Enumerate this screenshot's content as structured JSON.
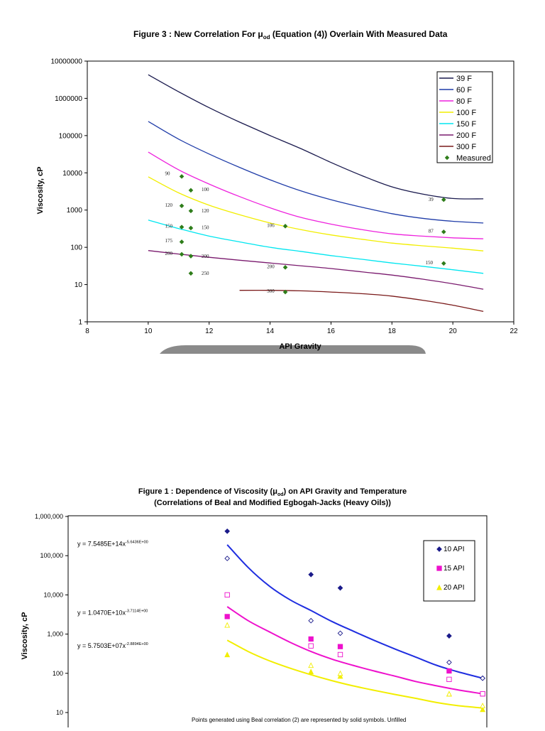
{
  "chart_data": [
    {
      "type": "line",
      "title": "Figure 3 : New Correlation For μ",
      "title_sub": "od",
      "title_rest": " (Equation (4)) Overlain With Measured Data",
      "xlabel": "API Gravity",
      "ylabel": "Viscosity, cP",
      "xlim": [
        8,
        22
      ],
      "ylim_log": [
        1,
        10000000
      ],
      "x_ticks": [
        8,
        10,
        12,
        14,
        16,
        18,
        20,
        22
      ],
      "y_ticks": [
        "1",
        "10",
        "100",
        "1000",
        "10000",
        "100000",
        "1000000",
        "10000000"
      ],
      "series": [
        {
          "name": "39 F",
          "color": "#1a1a4e",
          "x": [
            10,
            11,
            12,
            13,
            14,
            15,
            16,
            17,
            18,
            19,
            20,
            21
          ],
          "values": [
            4300000,
            1500000,
            560000,
            230000,
            100000,
            45000,
            19000,
            8500,
            4200,
            2700,
            2050,
            2000
          ]
        },
        {
          "name": "60 F",
          "color": "#1f3ca8",
          "x": [
            10,
            11,
            12,
            13,
            14,
            15,
            16,
            17,
            18,
            19,
            20,
            21
          ],
          "values": [
            240000,
            80000,
            32000,
            14000,
            6500,
            3300,
            1900,
            1200,
            800,
            600,
            500,
            450
          ]
        },
        {
          "name": "80 F",
          "color": "#ee22dd",
          "x": [
            10,
            11,
            12,
            13,
            14,
            15,
            16,
            17,
            18,
            19,
            20,
            21
          ],
          "values": [
            36000,
            12000,
            5000,
            2300,
            1150,
            640,
            420,
            300,
            230,
            200,
            180,
            170
          ]
        },
        {
          "name": "100 F",
          "color": "#f2ee00",
          "x": [
            10,
            11,
            12,
            13,
            14,
            15,
            16,
            17,
            18,
            19,
            20,
            21
          ],
          "values": [
            7800,
            2900,
            1350,
            750,
            450,
            300,
            215,
            165,
            130,
            110,
            95,
            80
          ]
        },
        {
          "name": "150 F",
          "color": "#00e6f0",
          "x": [
            10,
            11,
            12,
            13,
            14,
            15,
            16,
            17,
            18,
            19,
            20,
            21
          ],
          "values": [
            540,
            320,
            200,
            140,
            100,
            78,
            60,
            48,
            38,
            31,
            25,
            20
          ]
        },
        {
          "name": "200 F",
          "color": "#7a1a6e",
          "x": [
            10,
            11,
            12,
            13,
            14,
            15,
            16,
            17,
            18,
            19,
            20,
            21
          ],
          "values": [
            82,
            66,
            54,
            45,
            38,
            32,
            27,
            22,
            18,
            14,
            10.5,
            7.5
          ]
        },
        {
          "name": "300 F",
          "color": "#7a1a1a",
          "x": [
            13,
            14,
            15,
            16,
            17,
            18,
            19,
            20,
            21
          ],
          "values": [
            7,
            7,
            6.8,
            6.3,
            5.7,
            4.9,
            3.8,
            2.8,
            1.9
          ]
        }
      ],
      "measured": {
        "name": "Measured",
        "color": "#2e7d1a",
        "points": [
          {
            "x": 11.1,
            "y": 8000
          },
          {
            "x": 11.4,
            "y": 3400
          },
          {
            "x": 11.1,
            "y": 1300
          },
          {
            "x": 11.4,
            "y": 950
          },
          {
            "x": 11.1,
            "y": 350
          },
          {
            "x": 11.4,
            "y": 330
          },
          {
            "x": 11.1,
            "y": 140
          },
          {
            "x": 11.1,
            "y": 65
          },
          {
            "x": 11.4,
            "y": 58
          },
          {
            "x": 11.4,
            "y": 20
          },
          {
            "x": 14.5,
            "y": 370
          },
          {
            "x": 14.5,
            "y": 29
          },
          {
            "x": 14.5,
            "y": 6.3
          },
          {
            "x": 19.7,
            "y": 1900
          },
          {
            "x": 19.7,
            "y": 260
          },
          {
            "x": 19.7,
            "y": 37
          }
        ]
      },
      "annotations": [
        {
          "text": "90",
          "x": 10.55,
          "y": 9500
        },
        {
          "text": "100",
          "x": 11.75,
          "y": 3500
        },
        {
          "text": "120",
          "x": 10.55,
          "y": 1350
        },
        {
          "text": "120",
          "x": 11.75,
          "y": 950
        },
        {
          "text": "150",
          "x": 10.55,
          "y": 370
        },
        {
          "text": "150",
          "x": 11.75,
          "y": 340
        },
        {
          "text": "175",
          "x": 10.55,
          "y": 150
        },
        {
          "text": "200",
          "x": 10.55,
          "y": 68
        },
        {
          "text": "200",
          "x": 11.75,
          "y": 57
        },
        {
          "text": "250",
          "x": 11.75,
          "y": 20
        },
        {
          "text": "106",
          "x": 13.9,
          "y": 380
        },
        {
          "text": "200",
          "x": 13.9,
          "y": 30
        },
        {
          "text": "300",
          "x": 13.9,
          "y": 6.6
        },
        {
          "text": "39",
          "x": 19.2,
          "y": 1900
        },
        {
          "text": "87",
          "x": 19.2,
          "y": 270
        },
        {
          "text": "150",
          "x": 19.1,
          "y": 38
        }
      ],
      "legend_position": "top-right"
    },
    {
      "type": "scatter",
      "title_line1_a": "Figure 1 : Dependence of  Viscosity (μ",
      "title_line1_sub": "od",
      "title_line1_b": ") on API Gravity and Temperature",
      "title_line2": "(Correlations of Beal and Modified Egbogah-Jacks (Heavy Oils))",
      "ylabel": "Viscosity, cP",
      "y_ticks": [
        "10",
        "100",
        "1,000",
        "10,000",
        "100,000",
        "1,000,000"
      ],
      "xlim": [
        0,
        100
      ],
      "ylim_log": [
        10,
        1000000
      ],
      "equations": [
        {
          "base": "y = 7.5485E+14x",
          "exp": "-5.6436E+00",
          "y": 200000
        },
        {
          "base": "y = 1.0470E+10x",
          "exp": "-3.7114E+00",
          "y": 3500
        },
        {
          "base": "y = 5.7503E+07x",
          "exp": "-2.8894E+00",
          "y": 500
        }
      ],
      "series": [
        {
          "name": "10 API",
          "color": "#1a1a8a",
          "line_color": "#1f2ee0",
          "marker": "diamond",
          "x": [
            38,
            58,
            65,
            91,
            99
          ],
          "solid": [
            420000,
            33000,
            15000,
            900,
            75
          ],
          "open": [
            85000,
            2200,
            1050,
            190,
            75
          ],
          "fit": [
            190000,
            50000,
            17000,
            7500,
            4000,
            2100,
            1200,
            700,
            420,
            260,
            160,
            110,
            75
          ]
        },
        {
          "name": "15 API",
          "color": "#ee11cc",
          "line_color": "#ee11cc",
          "marker": "square",
          "x": [
            38,
            58,
            65,
            91,
            99
          ],
          "solid": [
            2800,
            750,
            480,
            115,
            30
          ],
          "open": [
            10000,
            500,
            300,
            70,
            30
          ],
          "fit": [
            5000,
            2200,
            1150,
            620,
            360,
            230,
            160,
            115,
            85,
            62,
            48,
            38,
            30
          ]
        },
        {
          "name": "20 API",
          "color": "#f2ee00",
          "line_color": "#f2ee00",
          "marker": "triangle",
          "x": [
            38,
            58,
            65,
            91,
            99
          ],
          "solid": [
            300,
            110,
            85,
            30,
            12
          ],
          "open": [
            1700,
            160,
            100,
            30,
            15
          ],
          "fit": [
            700,
            360,
            210,
            135,
            92,
            65,
            48,
            37,
            29,
            23,
            18,
            15,
            13
          ]
        }
      ],
      "fit_x": [
        38,
        43,
        48,
        53,
        58,
        63,
        68,
        73,
        78,
        83,
        88,
        93,
        99
      ],
      "note": "Points generated using Beal correlation (2) are represented by solid symbols.  Unfilled",
      "legend_position": "top-right"
    }
  ]
}
